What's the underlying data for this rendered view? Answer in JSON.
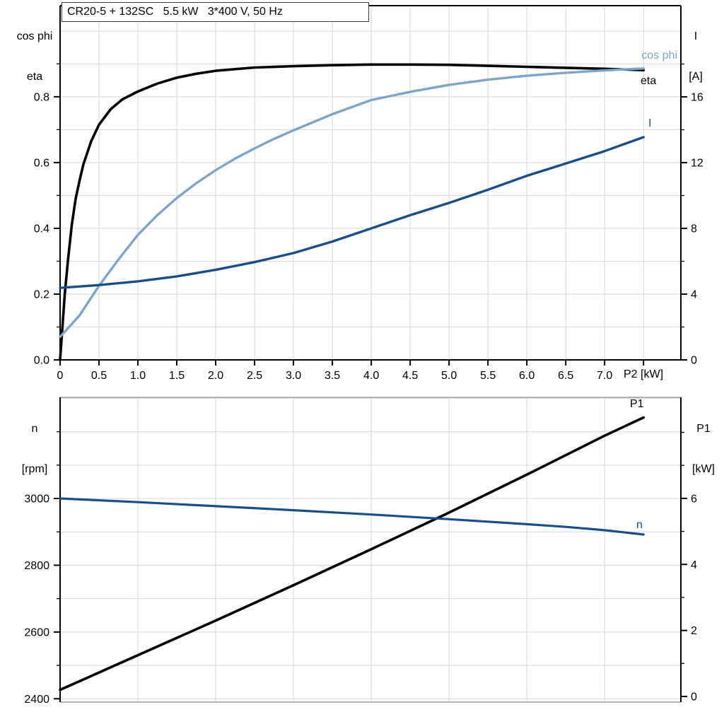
{
  "page": {
    "background": "#ffffff"
  },
  "colors": {
    "eta": "#000000",
    "cos_phi": "#7fa5c6",
    "current": "#1a4e87",
    "speed": "#1a4e87",
    "power": "#000000",
    "grid": "#d6d6d6",
    "axis": "#000000",
    "frame_gray": "#9b9b9b",
    "text": "#000000"
  },
  "title": "CR20-5 + 132SC   5.5 kW   3*400 V, 50 Hz",
  "labels": {
    "top_left": [
      "cos phi",
      "eta"
    ],
    "top_right": [
      "I",
      "[A]"
    ],
    "bottom_left": [
      "n",
      "[rpm]"
    ],
    "bottom_right": [
      "P1",
      "[kW]"
    ],
    "x_axis": "P2 [kW]"
  },
  "chart_data": [
    {
      "type": "line",
      "title": "CR20-5 + 132SC  5.5 kW  3*400 V, 50 Hz",
      "xlabel": "P2 [kW]",
      "xlim": [
        0,
        7.98
      ],
      "grid": true,
      "x_gridlines": [
        0.5,
        1,
        1.5,
        2,
        2.5,
        3,
        3.5,
        4,
        4.5,
        5,
        5.5,
        6,
        6.5,
        7,
        7.5
      ],
      "x_ticks": [
        0,
        0.5,
        1,
        1.5,
        2,
        2.5,
        3,
        3.5,
        4,
        4.5,
        5,
        5.5,
        6,
        6.5,
        7,
        7.5
      ],
      "x_tick_labels": [
        "0",
        "0.5",
        "1.0",
        "1.5",
        "2.0",
        "2.5",
        "3.0",
        "3.5",
        "4.0",
        "4.5",
        "5.0",
        "5.5",
        "6.0",
        "6.5",
        "7.0",
        ""
      ],
      "left_axis": {
        "label": "cos phi / eta",
        "lim": [
          0,
          1.077
        ],
        "tick_values": [
          0,
          0.2,
          0.4,
          0.6,
          0.8
        ],
        "tick_labels": [
          "0.0",
          "0.2",
          "0.4",
          "0.6",
          "0.8"
        ],
        "minor_ticks": [
          0.1,
          0.3,
          0.5,
          0.7,
          0.9
        ],
        "gridlines": [
          0.1,
          0.2,
          0.3,
          0.4,
          0.5,
          0.6,
          0.7,
          0.8,
          0.9,
          1.0
        ]
      },
      "right_axis": {
        "label": "I [A]",
        "lim": [
          0,
          21.55
        ],
        "tick_values": [
          0,
          4,
          8,
          12,
          16
        ],
        "tick_labels": [
          "0",
          "4",
          "8",
          "12",
          "16"
        ],
        "minor_ticks": [
          2,
          6,
          10,
          14,
          18
        ]
      },
      "series": [
        {
          "name": "eta",
          "label": "eta",
          "axis": "left",
          "color_key": "eta",
          "width": 3.6,
          "x": [
            0,
            0.03,
            0.06,
            0.1,
            0.15,
            0.2,
            0.25,
            0.3,
            0.4,
            0.5,
            0.65,
            0.8,
            1.0,
            1.25,
            1.5,
            1.75,
            2.0,
            2.5,
            3.0,
            3.5,
            4.0,
            4.5,
            5.0,
            5.5,
            6.0,
            6.5,
            7.0,
            7.5
          ],
          "y": [
            0,
            0.1,
            0.2,
            0.3,
            0.41,
            0.49,
            0.545,
            0.595,
            0.665,
            0.715,
            0.762,
            0.792,
            0.816,
            0.84,
            0.858,
            0.87,
            0.879,
            0.889,
            0.893,
            0.896,
            0.898,
            0.898,
            0.897,
            0.894,
            0.891,
            0.888,
            0.885,
            0.881
          ]
        },
        {
          "name": "cos-phi",
          "label": "cos phi",
          "axis": "left",
          "color_key": "cos_phi",
          "width": 3.4,
          "x": [
            0,
            0.25,
            0.5,
            0.75,
            1.0,
            1.25,
            1.5,
            1.75,
            2.0,
            2.25,
            2.5,
            2.75,
            3.0,
            3.5,
            4.0,
            4.5,
            5.0,
            5.5,
            6.0,
            6.5,
            7.0,
            7.5
          ],
          "y": [
            0.07,
            0.135,
            0.225,
            0.305,
            0.38,
            0.44,
            0.492,
            0.537,
            0.577,
            0.612,
            0.643,
            0.672,
            0.698,
            0.747,
            0.79,
            0.815,
            0.836,
            0.852,
            0.864,
            0.873,
            0.88,
            0.886
          ]
        },
        {
          "name": "current",
          "label": "I",
          "axis": "right",
          "color_key": "current",
          "width": 3.4,
          "x": [
            0,
            0.5,
            1.0,
            1.5,
            2.0,
            2.5,
            3.0,
            3.5,
            4.0,
            4.5,
            5.0,
            5.5,
            6.0,
            6.5,
            7.0,
            7.5
          ],
          "y": [
            4.38,
            4.55,
            4.78,
            5.08,
            5.48,
            5.95,
            6.5,
            7.2,
            8.0,
            8.8,
            9.55,
            10.35,
            11.2,
            11.95,
            12.7,
            13.55
          ]
        }
      ]
    },
    {
      "type": "line",
      "title": "",
      "xlabel": "",
      "xlim": [
        0,
        7.98
      ],
      "grid": true,
      "x_gridlines": [
        1,
        2,
        3,
        4,
        5,
        6,
        7
      ],
      "x_ticks": [],
      "x_tick_labels": [],
      "left_axis": {
        "label": "n [rpm]",
        "lim": [
          2390,
          3303
        ],
        "tick_values": [
          2400,
          2600,
          2800,
          3000
        ],
        "tick_labels": [
          "2400",
          "2600",
          "2800",
          "3000"
        ],
        "minor_ticks": [
          2500,
          2700,
          2900,
          3100,
          3200
        ],
        "gridlines": [
          2400,
          2500,
          2600,
          2700,
          2800,
          2900,
          3000,
          3100,
          3200,
          3300
        ]
      },
      "right_axis": {
        "label": "P1 [kW]",
        "lim": [
          -0.17,
          9.06
        ],
        "tick_values": [
          0,
          2,
          4,
          6
        ],
        "tick_labels": [
          "0",
          "2",
          "4",
          "6"
        ],
        "minor_ticks": [
          1,
          3,
          5,
          7,
          8
        ]
      },
      "series": [
        {
          "name": "power-p1",
          "label": "P1",
          "axis": "right",
          "color_key": "power",
          "width": 3.6,
          "x": [
            0,
            1,
            2,
            3,
            4,
            5,
            6,
            7,
            7.5
          ],
          "y": [
            0.2,
            1.25,
            2.3,
            3.37,
            4.46,
            5.57,
            6.72,
            7.9,
            8.45
          ]
        },
        {
          "name": "speed-n",
          "label": "n",
          "axis": "left",
          "color_key": "speed",
          "width": 3.2,
          "x": [
            0,
            1,
            2,
            3,
            4,
            5,
            6,
            6.5,
            7,
            7.5
          ],
          "y": [
            3000,
            2989,
            2977,
            2965,
            2952,
            2938,
            2923,
            2915,
            2905,
            2892
          ]
        }
      ]
    }
  ]
}
